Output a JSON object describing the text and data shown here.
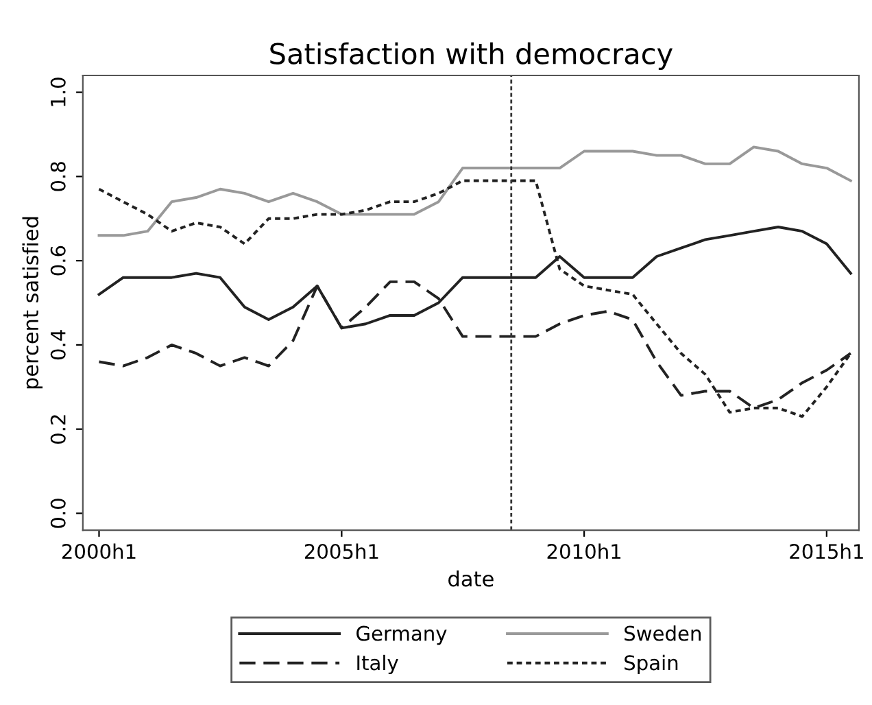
{
  "chart_data": {
    "type": "line",
    "title": "Satisfaction with democracy",
    "xlabel": "date",
    "ylabel": "percent satisfied",
    "x": [
      "2000-01",
      "2000-07",
      "2001-01",
      "2001-07",
      "2002-01",
      "2002-07",
      "2003-01",
      "2003-07",
      "2004-01",
      "2004-07",
      "2005-01",
      "2005-07",
      "2006-01",
      "2006-07",
      "2007-01",
      "2007-07",
      "2008-01",
      "2008-07",
      "2009-01",
      "2009-07",
      "2010-01",
      "2010-07",
      "2011-01",
      "2011-07",
      "2012-01",
      "2012-07",
      "2013-01",
      "2013-07",
      "2014-01",
      "2014-07",
      "2015-01",
      "2015-07"
    ],
    "xlim": [
      "1999-09",
      "2015-09"
    ],
    "ylim": [
      -0.04,
      1.04
    ],
    "xticks": [
      {
        "value": "2000-01",
        "label": "2000h1"
      },
      {
        "value": "2005-01",
        "label": "2005h1"
      },
      {
        "value": "2010-01",
        "label": "2010h1"
      },
      {
        "value": "2015-01",
        "label": "2015h1"
      }
    ],
    "yticks": [
      {
        "value": 0,
        "label": "0.0"
      },
      {
        "value": 0.2,
        "label": "0.2"
      },
      {
        "value": 0.4,
        "label": "0.4"
      },
      {
        "value": 0.6,
        "label": "0.6"
      },
      {
        "value": 0.8,
        "label": "0.8"
      },
      {
        "value": 1,
        "label": "1.0"
      }
    ],
    "grid": false,
    "legend": "bottom",
    "marker": "none",
    "ref_lines": [
      {
        "axis": "x",
        "value": "2008-07",
        "label": null,
        "color": "#333333",
        "line_style": "dotted"
      }
    ],
    "series": [
      {
        "name": "Germany",
        "color": "#222222",
        "line_style": "solid",
        "values": [
          0.52,
          0.56,
          0.56,
          0.56,
          0.57,
          0.56,
          0.49,
          0.46,
          0.49,
          0.54,
          0.44,
          0.45,
          0.47,
          0.47,
          0.5,
          0.56,
          0.56,
          0.56,
          0.56,
          0.61,
          0.56,
          0.56,
          0.56,
          0.61,
          0.63,
          0.65,
          0.66,
          0.67,
          0.68,
          0.67,
          0.64,
          0.57
        ]
      },
      {
        "name": "Sweden",
        "color": "#999999",
        "line_style": "solid",
        "values": [
          0.66,
          0.66,
          0.67,
          0.74,
          0.75,
          0.77,
          0.76,
          0.74,
          0.76,
          0.74,
          0.71,
          0.71,
          0.71,
          0.71,
          0.74,
          0.82,
          0.82,
          0.82,
          0.82,
          0.82,
          0.86,
          0.86,
          0.86,
          0.85,
          0.85,
          0.83,
          0.83,
          0.87,
          0.86,
          0.83,
          0.82,
          0.79
        ]
      },
      {
        "name": "Italy",
        "color": "#222222",
        "line_style": "dashed",
        "values": [
          0.36,
          0.35,
          0.37,
          0.4,
          0.38,
          0.35,
          0.37,
          0.35,
          0.41,
          0.54,
          0.44,
          0.49,
          0.55,
          0.55,
          0.51,
          0.42,
          0.42,
          0.42,
          0.42,
          0.45,
          0.47,
          0.48,
          0.46,
          0.36,
          0.28,
          0.29,
          0.29,
          0.25,
          0.27,
          0.31,
          0.34,
          0.38
        ]
      },
      {
        "name": "Spain",
        "color": "#222222",
        "line_style": "dotted",
        "values": [
          0.77,
          0.74,
          0.71,
          0.67,
          0.69,
          0.68,
          0.64,
          0.7,
          0.7,
          0.71,
          0.71,
          0.72,
          0.74,
          0.74,
          0.76,
          0.79,
          0.79,
          0.79,
          0.79,
          0.58,
          0.54,
          0.53,
          0.52,
          0.45,
          0.38,
          0.33,
          0.24,
          0.25,
          0.25,
          0.23,
          0.3,
          0.38
        ]
      }
    ]
  }
}
